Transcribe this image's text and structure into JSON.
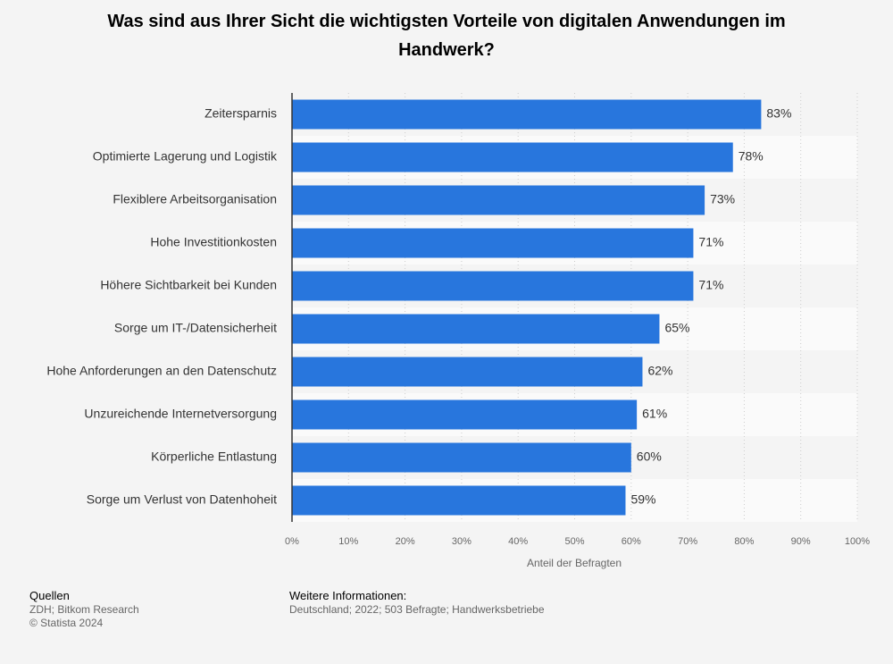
{
  "chart_data": {
    "type": "barh",
    "title": "Was sind aus Ihrer Sicht die wichtigsten Vorteile von digitalen Anwendungen im Handwerk?",
    "categories": [
      "Zeitersparnis",
      "Optimierte Lagerung und Logistik",
      "Flexiblere Arbeitsorganisation",
      "Hohe Investitionkosten",
      "Höhere Sichtbarkeit bei Kunden",
      "Sorge um IT-/Datensicherheit",
      "Hohe Anforderungen an den Datenschutz",
      "Unzureichende Internetversorgung",
      "Körperliche Entlastung",
      "Sorge um Verlust von Datenhoheit"
    ],
    "values": [
      83,
      78,
      73,
      71,
      71,
      65,
      62,
      61,
      60,
      59
    ],
    "value_labels": [
      "83%",
      "78%",
      "73%",
      "71%",
      "71%",
      "65%",
      "62%",
      "61%",
      "60%",
      "59%"
    ],
    "color": "#2876dd",
    "xlim": [
      0,
      100
    ],
    "xticks": [
      {
        "value": 0,
        "label": "0%"
      },
      {
        "value": 10,
        "label": "10%"
      },
      {
        "value": 20,
        "label": "20%"
      },
      {
        "value": 30,
        "label": "30%"
      },
      {
        "value": 40,
        "label": "40%"
      },
      {
        "value": 50,
        "label": "50%"
      },
      {
        "value": 60,
        "label": "60%"
      },
      {
        "value": 70,
        "label": "70%"
      },
      {
        "value": 80,
        "label": "80%"
      },
      {
        "value": 90,
        "label": "90%"
      },
      {
        "value": 100,
        "label": "100%"
      }
    ],
    "xlabel": "Anteil der Befragten",
    "grid": true
  },
  "footer": {
    "sources_title": "Quellen",
    "sources": "ZDH; Bitkom Research",
    "copyright": "© Statista 2024",
    "info_title": "Weitere Informationen:",
    "info": "Deutschland; 2022; 503 Befragte; Handwerksbetriebe"
  }
}
